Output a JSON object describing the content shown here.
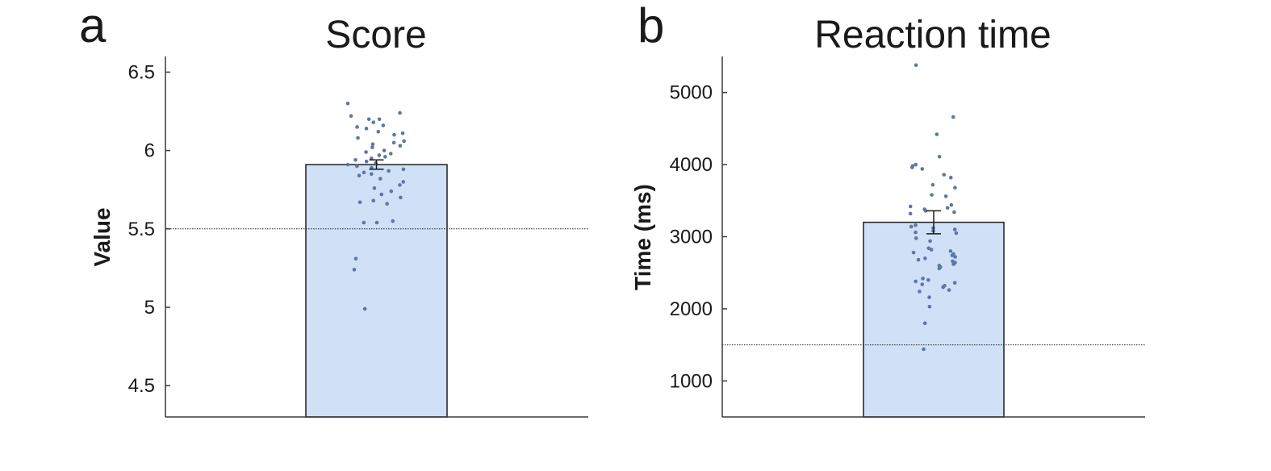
{
  "colors": {
    "bar_fill": "#cfe0f7",
    "bar_edge": "#1f1f1f",
    "dot": "#5b78a6",
    "axis": "#3a3a3a",
    "reference_line": "#1f1f1f"
  },
  "chart_data": [
    {
      "type": "bar",
      "panel_label": "a",
      "title": "Score",
      "ylabel": "Value",
      "xlabel": "",
      "ylim": [
        4.3,
        6.6
      ],
      "yticks": [
        4.5,
        5,
        5.5,
        6,
        6.5
      ],
      "ytick_labels": [
        "4.5",
        "5",
        "5.5",
        "6",
        "6.5"
      ],
      "bar_value": 5.91,
      "error_bar": [
        5.88,
        5.94
      ],
      "reference_line": 5.5,
      "individual_points": [
        6.3,
        6.24,
        6.22,
        6.2,
        6.2,
        6.18,
        6.16,
        6.15,
        6.14,
        6.12,
        6.11,
        6.1,
        6.08,
        6.06,
        6.05,
        6.04,
        6.03,
        6.02,
        6.0,
        5.99,
        5.98,
        5.97,
        5.96,
        5.95,
        5.94,
        5.93,
        5.92,
        5.91,
        5.9,
        5.89,
        5.88,
        5.87,
        5.86,
        5.85,
        5.84,
        5.82,
        5.8,
        5.78,
        5.76,
        5.74,
        5.72,
        5.7,
        5.68,
        5.67,
        5.66,
        5.55,
        5.54,
        5.54,
        5.31,
        5.24,
        4.99
      ]
    },
    {
      "type": "bar",
      "panel_label": "b",
      "title": "Reaction time",
      "ylabel": "Time (ms)",
      "xlabel": "",
      "ylim": [
        500,
        5500
      ],
      "yticks": [
        1000,
        2000,
        3000,
        4000,
        5000
      ],
      "ytick_labels": [
        "1000",
        "2000",
        "3000",
        "4000",
        "5000"
      ],
      "bar_value": 3200,
      "error_bar": [
        3040,
        3360
      ],
      "reference_line": 1500,
      "individual_points": [
        5380,
        4660,
        4420,
        4110,
        4000,
        3980,
        3960,
        3940,
        3860,
        3820,
        3720,
        3680,
        3580,
        3560,
        3440,
        3420,
        3400,
        3380,
        3360,
        3340,
        3320,
        3160,
        3140,
        3120,
        3100,
        3080,
        3060,
        3050,
        2980,
        2940,
        2840,
        2820,
        2800,
        2780,
        2760,
        2740,
        2720,
        2700,
        2680,
        2660,
        2640,
        2620,
        2600,
        2580,
        2560,
        2420,
        2400,
        2380,
        2360,
        2340,
        2320,
        2300,
        2260,
        2240,
        2160,
        2030,
        1800,
        1440
      ]
    }
  ]
}
